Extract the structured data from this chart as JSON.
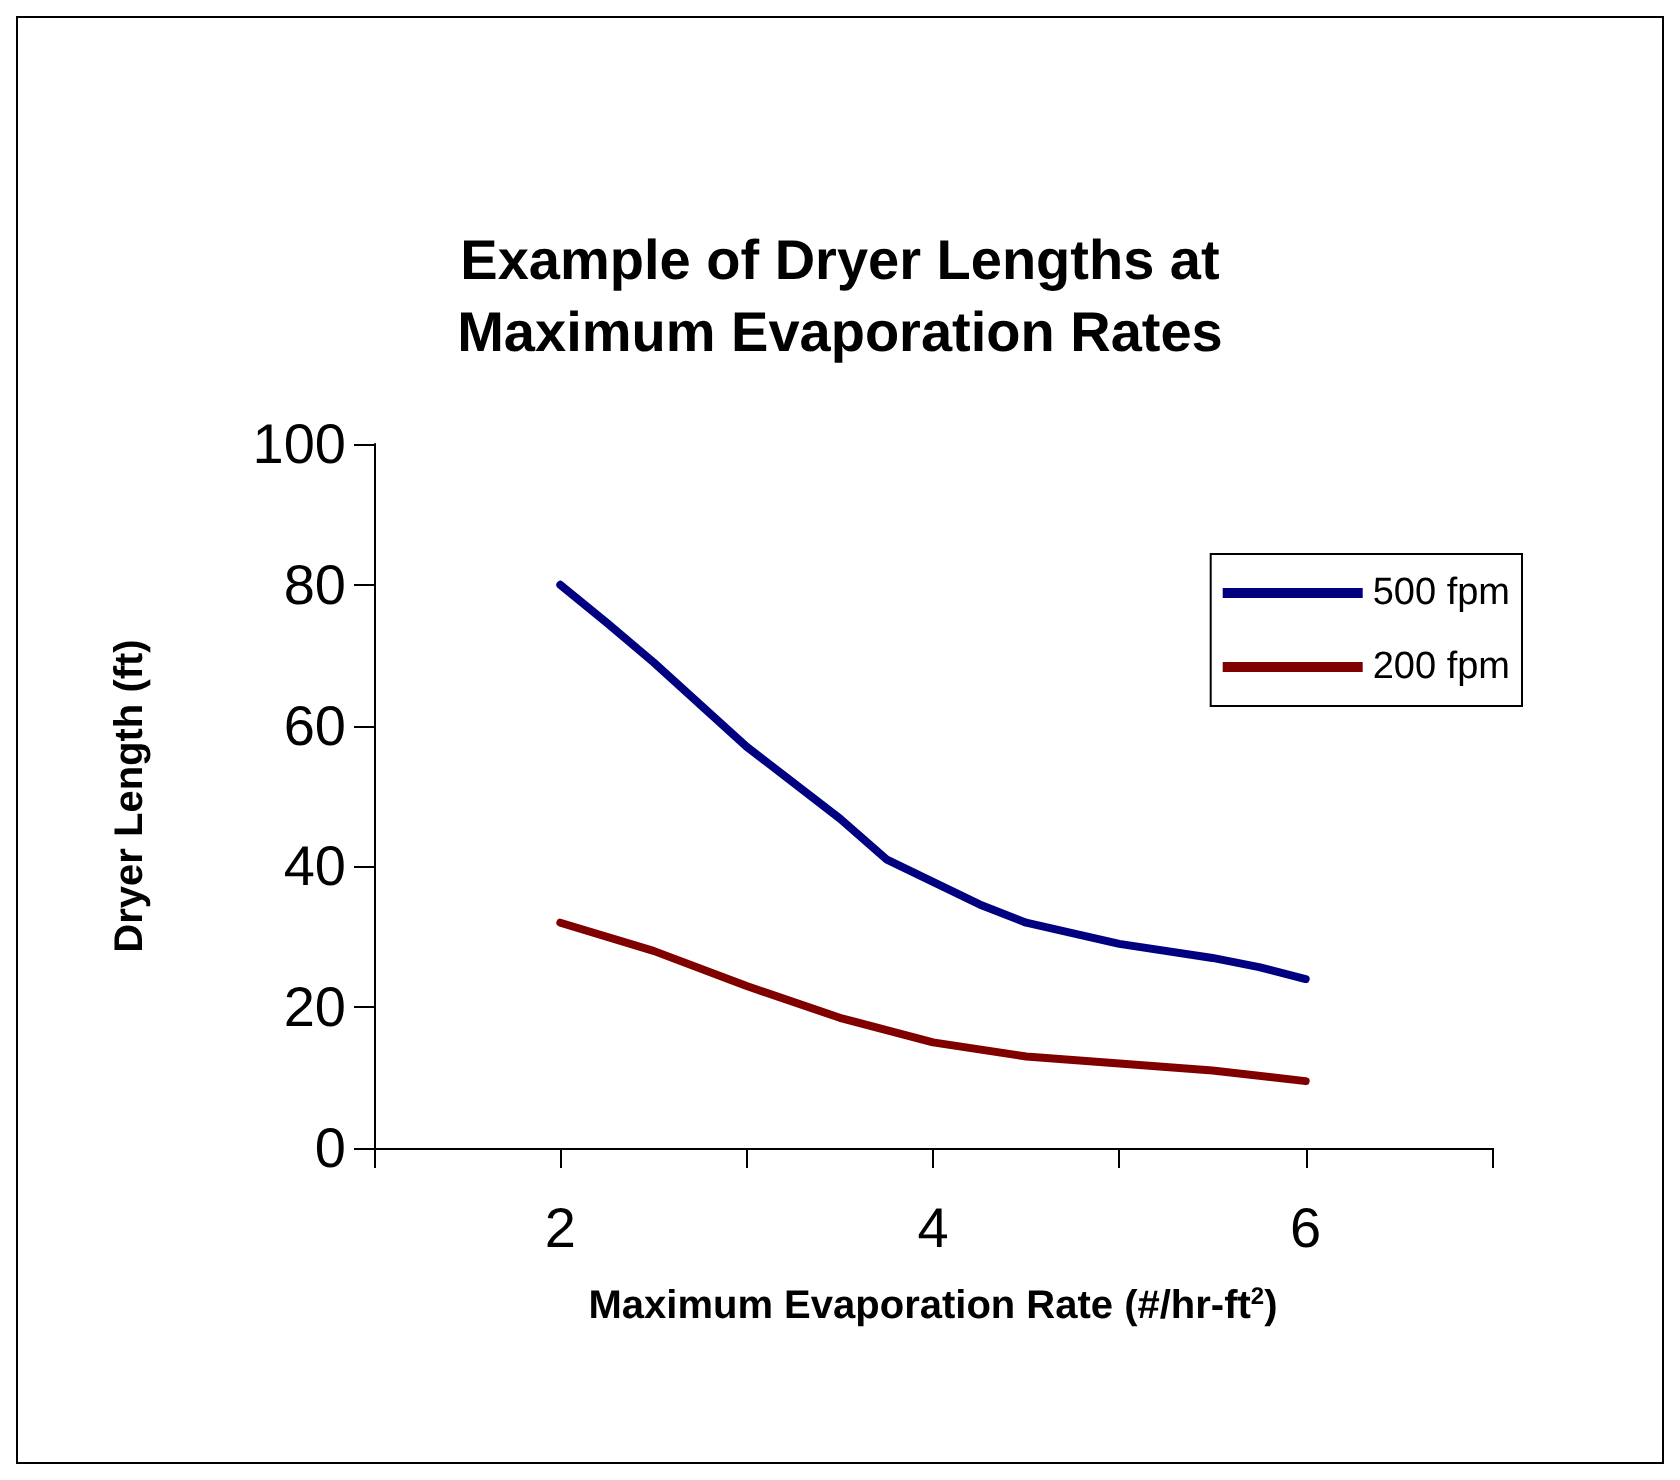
{
  "chart_data": {
    "type": "line",
    "title": "Example of Dryer Lengths at\nMaximum Evaporation Rates",
    "xlabel": "Maximum Evaporation Rate (#/hr-ft$^{2}$)",
    "ylabel": "Dryer Length (ft)",
    "xlim": [
      1,
      7
    ],
    "xticks": [
      {
        "value": 1,
        "label": null
      },
      2,
      {
        "value": 3,
        "label": null
      },
      4,
      {
        "value": 5,
        "label": null
      },
      6,
      {
        "value": 7,
        "label": null
      }
    ],
    "ylim": [
      0,
      100
    ],
    "yticks": [
      0,
      20,
      40,
      60,
      80,
      100
    ],
    "grid": false,
    "legend": "top right",
    "marker": "none",
    "line_style": "solid",
    "series": [
      {
        "name": "500 fpm",
        "color": "#000080",
        "x": [
          2,
          2.25,
          2.5,
          3,
          3.5,
          3.75,
          4,
          4.25,
          4.5,
          5,
          5.5,
          5.75,
          6
        ],
        "values": [
          80,
          74.6,
          69,
          57,
          46.8,
          41,
          37.8,
          34.6,
          32,
          29,
          27,
          25.7,
          24
        ]
      },
      {
        "name": "200 fpm",
        "color": "#800000",
        "x": [
          2,
          2.5,
          3,
          3.5,
          4,
          4.5,
          5,
          5.5,
          6
        ],
        "values": [
          32,
          28,
          23,
          18.5,
          15,
          13,
          12,
          11,
          9.5
        ]
      }
    ]
  }
}
